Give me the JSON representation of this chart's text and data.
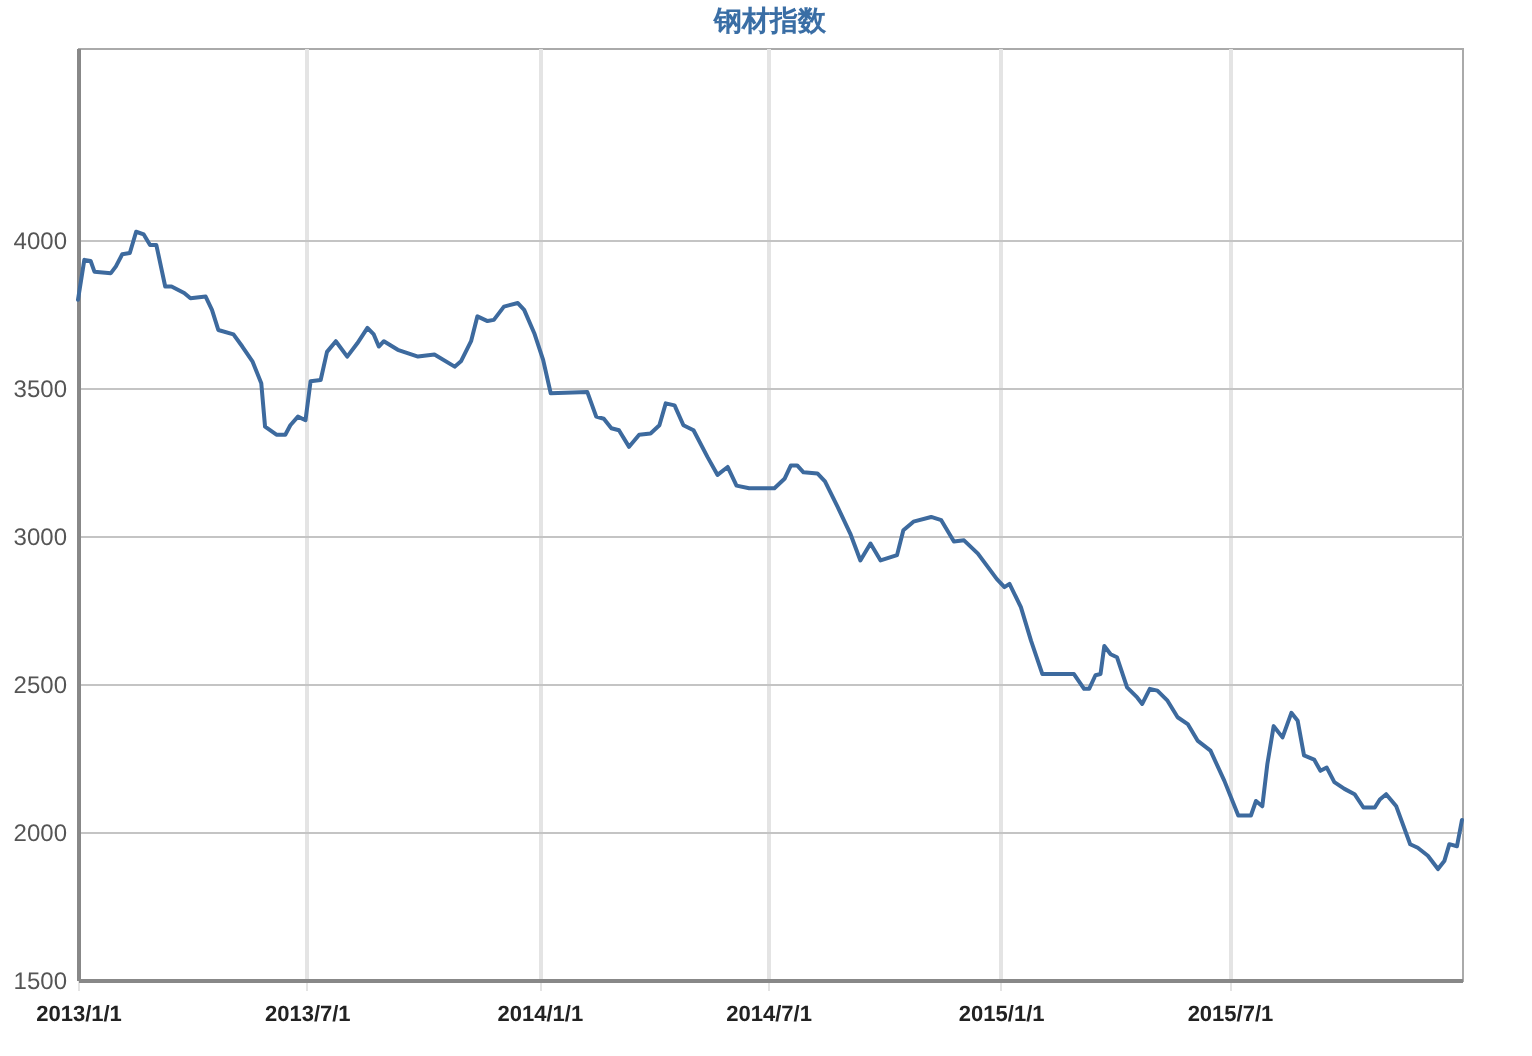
{
  "chart_data": {
    "type": "line",
    "title": "钢材指数",
    "x": [
      "2013-01-01",
      "2013-01-06",
      "2013-01-11",
      "2013-01-14",
      "2013-01-27",
      "2013-01-31",
      "2013-02-05",
      "2013-02-11",
      "2013-02-16",
      "2013-02-22",
      "2013-02-27",
      "2013-03-04",
      "2013-03-11",
      "2013-03-16",
      "2013-03-26",
      "2013-03-31",
      "2013-04-12",
      "2013-04-17",
      "2013-04-22",
      "2013-05-04",
      "2013-05-11",
      "2013-05-19",
      "2013-05-26",
      "2013-05-29",
      "2013-06-07",
      "2013-06-14",
      "2013-06-18",
      "2013-06-24",
      "2013-06-30",
      "2013-07-04",
      "2013-07-12",
      "2013-07-17",
      "2013-07-24",
      "2013-08-02",
      "2013-08-10",
      "2013-08-18",
      "2013-08-23",
      "2013-08-27",
      "2013-08-31",
      "2013-09-11",
      "2013-09-27",
      "2013-10-10",
      "2013-10-26",
      "2013-10-31",
      "2013-11-08",
      "2013-11-13",
      "2013-11-21",
      "2013-11-26",
      "2013-12-04",
      "2013-12-15",
      "2013-12-20",
      "2013-12-28",
      "2014-01-04",
      "2014-01-10",
      "2014-02-08",
      "2014-02-15",
      "2014-02-21",
      "2014-02-27",
      "2014-03-05",
      "2014-03-13",
      "2014-03-21",
      "2014-03-30",
      "2014-04-06",
      "2014-04-11",
      "2014-04-18",
      "2014-04-25",
      "2014-05-03",
      "2014-05-14",
      "2014-05-22",
      "2014-05-30",
      "2014-06-06",
      "2014-06-16",
      "2014-07-06",
      "2014-07-14",
      "2014-07-19",
      "2014-07-24",
      "2014-07-29",
      "2014-08-09",
      "2014-08-15",
      "2014-08-25",
      "2014-09-04",
      "2014-09-12",
      "2014-09-20",
      "2014-09-28",
      "2014-10-11",
      "2014-10-16",
      "2014-10-24",
      "2014-11-07",
      "2014-11-15",
      "2014-11-25",
      "2014-12-03",
      "2014-12-14",
      "2014-12-29",
      "2015-01-04",
      "2015-01-08",
      "2015-01-17",
      "2015-01-25",
      "2015-02-03",
      "2015-02-28",
      "2015-03-08",
      "2015-03-12",
      "2015-03-17",
      "2015-03-21",
      "2015-03-24",
      "2015-03-29",
      "2015-04-03",
      "2015-04-11",
      "2015-04-19",
      "2015-04-23",
      "2015-04-29",
      "2015-05-05",
      "2015-05-13",
      "2015-05-21",
      "2015-05-29",
      "2015-06-06",
      "2015-06-16",
      "2015-06-27",
      "2015-07-08",
      "2015-07-18",
      "2015-07-22",
      "2015-07-27",
      "2015-07-31",
      "2015-08-05",
      "2015-08-12",
      "2015-08-19",
      "2015-08-24",
      "2015-08-29",
      "2015-09-06",
      "2015-09-11",
      "2015-09-16",
      "2015-09-22",
      "2015-09-30",
      "2015-10-08",
      "2015-10-15",
      "2015-10-24",
      "2015-10-28",
      "2015-11-02",
      "2015-11-10",
      "2015-11-21",
      "2015-11-27",
      "2015-12-05",
      "2015-12-13",
      "2015-12-18",
      "2015-12-22",
      "2015-12-28",
      "2016-01-01"
    ],
    "series": [
      {
        "color": "#3d6a9e",
        "values": [
          3799,
          3934,
          3930,
          3894,
          3889,
          3912,
          3953,
          3957,
          4029,
          4020,
          3984,
          3984,
          3844,
          3844,
          3822,
          3804,
          3810,
          3765,
          3697,
          3682,
          3641,
          3591,
          3517,
          3370,
          3343,
          3343,
          3375,
          3404,
          3392,
          3524,
          3528,
          3623,
          3659,
          3607,
          3652,
          3704,
          3682,
          3641,
          3659,
          3630,
          3607,
          3614,
          3573,
          3591,
          3659,
          3743,
          3727,
          3731,
          3776,
          3788,
          3765,
          3686,
          3596,
          3483,
          3487,
          3404,
          3397,
          3365,
          3358,
          3302,
          3343,
          3347,
          3375,
          3449,
          3442,
          3375,
          3358,
          3268,
          3207,
          3234,
          3171,
          3162,
          3162,
          3194,
          3239,
          3239,
          3216,
          3212,
          3185,
          3099,
          3009,
          2918,
          2975,
          2918,
          2936,
          3020,
          3049,
          3065,
          3054,
          2982,
          2986,
          2941,
          2855,
          2828,
          2839,
          2760,
          2647,
          2534,
          2534,
          2484,
          2484,
          2530,
          2534,
          2629,
          2601,
          2591,
          2489,
          2455,
          2433,
          2484,
          2478,
          2444,
          2388,
          2365,
          2308,
          2275,
          2173,
          2056,
          2056,
          2105,
          2087,
          2230,
          2358,
          2320,
          2403,
          2376,
          2259,
          2245,
          2207,
          2218,
          2169,
          2146,
          2128,
          2083,
          2083,
          2110,
          2128,
          2087,
          1959,
          1947,
          1920,
          1875,
          1902,
          1959,
          1952,
          2041
        ]
      }
    ],
    "xlim": [
      "2013-01-01",
      "2016-01-01"
    ],
    "xticks": [
      {
        "value": "2013-01-01",
        "label": "2013/1/1"
      },
      {
        "value": "2013-07-01",
        "label": "2013/7/1"
      },
      {
        "value": "2014-01-01",
        "label": "2014/1/1"
      },
      {
        "value": "2014-07-01",
        "label": "2014/7/1"
      },
      {
        "value": "2015-01-01",
        "label": "2015/1/1"
      },
      {
        "value": "2015-07-01",
        "label": "2015/7/1"
      }
    ],
    "ylim": [
      1500,
      4650
    ],
    "yticks": [
      1500,
      2000,
      2500,
      3000,
      3500,
      4000
    ],
    "grid": true,
    "marker": "none",
    "line_style": "solid"
  }
}
